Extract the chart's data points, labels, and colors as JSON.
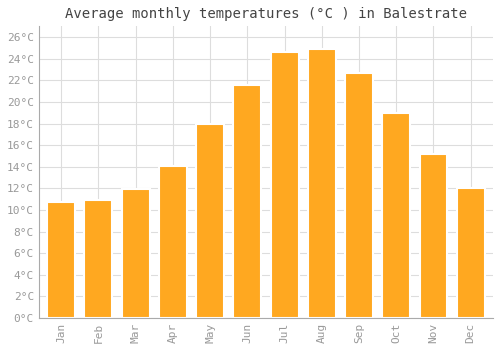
{
  "title": "Average monthly temperatures (°C ) in Balestrate",
  "months": [
    "Jan",
    "Feb",
    "Mar",
    "Apr",
    "May",
    "Jun",
    "Jul",
    "Aug",
    "Sep",
    "Oct",
    "Nov",
    "Dec"
  ],
  "temperatures": [
    10.7,
    10.9,
    11.9,
    14.1,
    18.0,
    21.6,
    24.6,
    24.9,
    22.7,
    19.0,
    15.2,
    12.0
  ],
  "bar_color": "#FFA820",
  "bar_edge_color": "#FFFFFF",
  "ylim": [
    0,
    27
  ],
  "ytick_step": 2,
  "background_color": "#FFFFFF",
  "plot_bg_color": "#FFFFFF",
  "grid_color": "#DDDDDD",
  "title_fontsize": 10,
  "tick_fontsize": 8,
  "tick_color": "#999999",
  "title_color": "#444444",
  "font_family": "monospace",
  "bar_width": 0.75
}
